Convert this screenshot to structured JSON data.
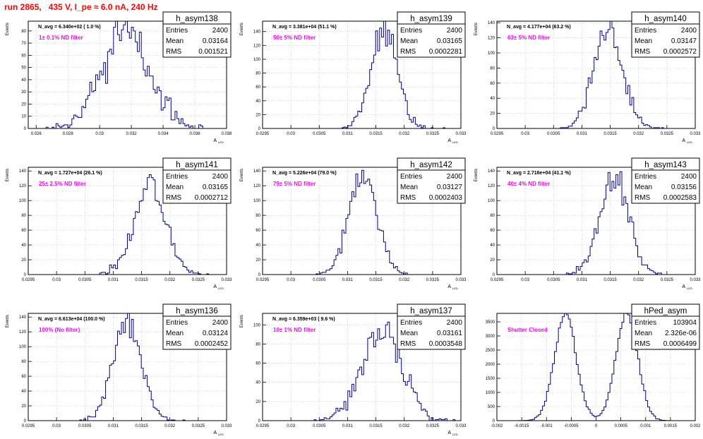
{
  "title": "run 2865,   435 V, I_pe ≈ 6.0 nA, 240 Hz",
  "colors": {
    "title": "#ff0000",
    "hist": "#000080",
    "annotation": "#ff00ff",
    "grid": "#b8b8b8"
  },
  "stats_labels": {
    "entries": "Entries",
    "mean": "Mean",
    "rms": "RMS"
  },
  "chart_data": [
    {
      "type": "histogram",
      "name": "h_asym138",
      "navg": "N_avg = 6.340e+02 ( 1.0 %)",
      "filter": "1± 0.1% ND filter",
      "ylabel": "Events",
      "xlabel": "A",
      "xlabel_sub": "LED",
      "stats": {
        "entries": "2400",
        "mean": "0.03164",
        "rms": "0.001521"
      },
      "xlim": [
        0.0255,
        0.038
      ],
      "ylim": [
        0,
        88
      ],
      "xticks": [
        0.026,
        0.028,
        0.03,
        0.032,
        0.034,
        0.036,
        0.038
      ],
      "xtick_labels": [
        "0.026",
        "0.028",
        "0.03",
        "0.032",
        "0.034",
        "0.036",
        "0.038"
      ],
      "yticks": [
        0,
        10,
        20,
        30,
        40,
        50,
        60,
        70,
        80
      ],
      "dist": {
        "type": "gauss",
        "mean": 0.03164,
        "sigma": 0.001521,
        "entries": 2400,
        "nbins": 100,
        "seed": 7
      }
    },
    {
      "type": "histogram",
      "name": "h_asym139",
      "navg": "N_avg = 3.381e+04 (51.1 %)",
      "filter": "50± 5% ND filter",
      "ylabel": "Events",
      "xlabel": "A",
      "xlabel_sub": "LED",
      "stats": {
        "entries": "2400",
        "mean": "0.03165",
        "rms": "0.0002281"
      },
      "xlim": [
        0.0295,
        0.033
      ],
      "ylim": [
        0,
        155
      ],
      "xticks": [
        0.0295,
        0.03,
        0.0305,
        0.031,
        0.0315,
        0.032,
        0.0325,
        0.033
      ],
      "xtick_labels": [
        "0.0295",
        "0.03",
        "0.0305",
        "0.031",
        "0.0315",
        "0.032",
        "0.0325",
        "0.033"
      ],
      "yticks": [
        0,
        20,
        40,
        60,
        80,
        100,
        120,
        140
      ],
      "dist": {
        "type": "gauss",
        "mean": 0.03165,
        "sigma": 0.0002281,
        "entries": 2400,
        "nbins": 100,
        "seed": 11
      }
    },
    {
      "type": "histogram",
      "name": "h_asym140",
      "navg": "N_avg = 4.177e+04 (63.2 %)",
      "filter": "63± 5% ND filter",
      "ylabel": "Events",
      "xlabel": "A",
      "xlabel_sub": "LED",
      "stats": {
        "entries": "2400",
        "mean": "0.03147",
        "rms": "0.0002572"
      },
      "xlim": [
        0.0295,
        0.033
      ],
      "ylim": [
        0,
        142
      ],
      "xticks": [
        0.0295,
        0.03,
        0.0305,
        0.031,
        0.0315,
        0.032,
        0.0325,
        0.033
      ],
      "xtick_labels": [
        "0.0295",
        "0.03",
        "0.0305",
        "0.031",
        "0.0315",
        "0.032",
        "0.0325",
        "0.033"
      ],
      "yticks": [
        0,
        20,
        40,
        60,
        80,
        100,
        120,
        140
      ],
      "dist": {
        "type": "gauss",
        "mean": 0.03147,
        "sigma": 0.0002572,
        "entries": 2400,
        "nbins": 100,
        "seed": 13
      }
    },
    {
      "type": "histogram",
      "name": "h_asym141",
      "navg": "N_avg = 1.727e+04 (26.1 %)",
      "filter": "25± 2.5% ND filter",
      "ylabel": "Events",
      "xlabel": "A",
      "xlabel_sub": "LED",
      "stats": {
        "entries": "2400",
        "mean": "0.03165",
        "rms": "0.0002712"
      },
      "xlim": [
        0.0295,
        0.033
      ],
      "ylim": [
        0,
        145
      ],
      "xticks": [
        0.0295,
        0.03,
        0.0305,
        0.031,
        0.0315,
        0.032,
        0.0325,
        0.033
      ],
      "xtick_labels": [
        "0.0295",
        "0.03",
        "0.0305",
        "0.031",
        "0.0315",
        "0.032",
        "0.0325",
        "0.033"
      ],
      "yticks": [
        0,
        20,
        40,
        60,
        80,
        100,
        120,
        140
      ],
      "dist": {
        "type": "gauss",
        "mean": 0.03165,
        "sigma": 0.0002712,
        "entries": 2400,
        "nbins": 100,
        "seed": 17
      }
    },
    {
      "type": "histogram",
      "name": "h_asym142",
      "navg": "N_avg = 5.226e+04 (79.0 %)",
      "filter": "79± 5% ND filter",
      "ylabel": "Events",
      "xlabel": "A",
      "xlabel_sub": "LED",
      "stats": {
        "entries": "2400",
        "mean": "0.03127",
        "rms": "0.0002403"
      },
      "xlim": [
        0.0295,
        0.033
      ],
      "ylim": [
        0,
        145
      ],
      "xticks": [
        0.0295,
        0.03,
        0.0305,
        0.031,
        0.0315,
        0.032,
        0.0325,
        0.033
      ],
      "xtick_labels": [
        "0.0295",
        "0.03",
        "0.0305",
        "0.031",
        "0.0315",
        "0.032",
        "0.0325",
        "0.033"
      ],
      "yticks": [
        0,
        20,
        40,
        60,
        80,
        100,
        120,
        140
      ],
      "dist": {
        "type": "gauss",
        "mean": 0.03127,
        "sigma": 0.0002403,
        "entries": 2400,
        "nbins": 100,
        "seed": 19
      }
    },
    {
      "type": "histogram",
      "name": "h_asym143",
      "navg": "N_avg = 2.716e+04 (41.1 %)",
      "filter": "40± 4% ND filter",
      "ylabel": "Events",
      "xlabel": "A",
      "xlabel_sub": "LED",
      "stats": {
        "entries": "2400",
        "mean": "0.03156",
        "rms": "0.0002583"
      },
      "xlim": [
        0.0295,
        0.033
      ],
      "ylim": [
        0,
        145
      ],
      "xticks": [
        0.0295,
        0.03,
        0.0305,
        0.031,
        0.0315,
        0.032,
        0.0325,
        0.033
      ],
      "xtick_labels": [
        "0.0295",
        "0.03",
        "0.0305",
        "0.031",
        "0.0315",
        "0.032",
        "0.0325",
        "0.033"
      ],
      "yticks": [
        0,
        20,
        40,
        60,
        80,
        100,
        120,
        140
      ],
      "dist": {
        "type": "gauss",
        "mean": 0.03156,
        "sigma": 0.0002583,
        "entries": 2400,
        "nbins": 100,
        "seed": 23
      }
    },
    {
      "type": "histogram",
      "name": "h_asym136",
      "navg": "N_avg = 6.613e+04 (100.0 %)",
      "filter": "100% (No filter)",
      "ylabel": "Events",
      "xlabel": "A",
      "xlabel_sub": "LED",
      "stats": {
        "entries": "2400",
        "mean": "0.03124",
        "rms": "0.0002452"
      },
      "xlim": [
        0.0295,
        0.033
      ],
      "ylim": [
        0,
        145
      ],
      "xticks": [
        0.0295,
        0.03,
        0.0305,
        0.031,
        0.0315,
        0.032,
        0.0325,
        0.033
      ],
      "xtick_labels": [
        "0.0295",
        "0.03",
        "0.0305",
        "0.031",
        "0.0315",
        "0.032",
        "0.0325",
        "0.033"
      ],
      "yticks": [
        0,
        20,
        40,
        60,
        80,
        100,
        120,
        140
      ],
      "dist": {
        "type": "gauss",
        "mean": 0.03124,
        "sigma": 0.0002452,
        "entries": 2400,
        "nbins": 100,
        "seed": 29
      }
    },
    {
      "type": "histogram",
      "name": "h_asym137",
      "navg": "N_avg = 6.359e+03 ( 9.6 %)",
      "filter": "10± 1% ND filter",
      "ylabel": "Events",
      "xlabel": "A",
      "xlabel_sub": "LED",
      "stats": {
        "entries": "2400",
        "mean": "0.03161",
        "rms": "0.0003548"
      },
      "xlim": [
        0.0295,
        0.033
      ],
      "ylim": [
        0,
        112
      ],
      "xticks": [
        0.0295,
        0.03,
        0.0305,
        0.031,
        0.0315,
        0.032,
        0.0325,
        0.033
      ],
      "xtick_labels": [
        "0.0295",
        "0.03",
        "0.0305",
        "0.031",
        "0.0315",
        "0.032",
        "0.0325",
        "0.033"
      ],
      "yticks": [
        0,
        20,
        40,
        60,
        80,
        100
      ],
      "dist": {
        "type": "gauss",
        "mean": 0.03161,
        "sigma": 0.0003548,
        "entries": 2400,
        "nbins": 100,
        "seed": 31
      }
    },
    {
      "type": "histogram",
      "name": "hPed_asym",
      "navg": "",
      "filter": "Shutter Closed",
      "ylabel": "",
      "xlabel": "",
      "xlabel_sub": "",
      "stats": {
        "entries": "103904",
        "mean": "2.326e-06",
        "rms": "0.0006499"
      },
      "xlim": [
        -0.002,
        0.002
      ],
      "ylim": [
        0,
        3800
      ],
      "xticks": [
        -0.002,
        -0.0015,
        -0.001,
        -0.0005,
        0,
        0.0005,
        0.001,
        0.0015,
        0.002
      ],
      "xtick_labels": [
        "-0.002",
        "-0.0015",
        "-0.001",
        "-0.0005",
        "0",
        "0.0005",
        "0.001",
        "0.0015",
        "0.002"
      ],
      "yticks": [
        0,
        500,
        1000,
        1500,
        2000,
        2500,
        3000,
        3500
      ],
      "dist": {
        "type": "bimodal",
        "mean": 0.0,
        "peaks": [
          -0.00062,
          0.00062
        ],
        "sigma": 0.00022,
        "entries": 103904,
        "nbins": 100,
        "seed": 37
      }
    }
  ]
}
